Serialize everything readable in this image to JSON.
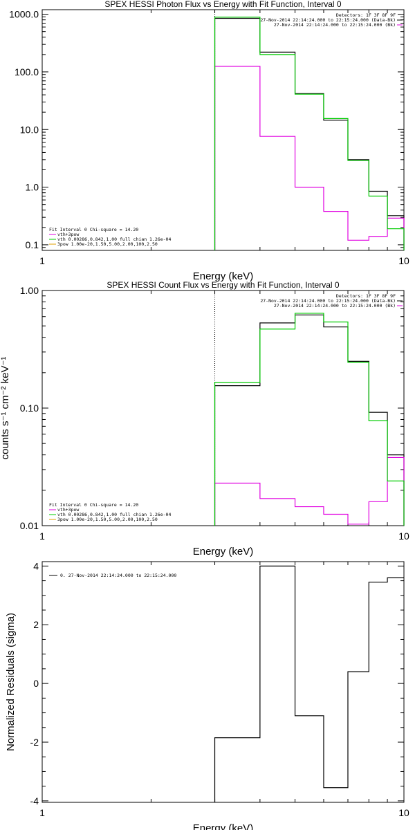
{
  "colors": {
    "black": "#000000",
    "magenta": "#e000e0",
    "green": "#00cc00",
    "orange": "#e0a000",
    "frame": "#000000"
  },
  "chart_data": [
    {
      "id": "photon",
      "type": "line",
      "title": "SPEX HESSI Photon Flux vs Energy with Fit Function, Interval 0",
      "xlabel": "Energy (keV)",
      "ylabel": "",
      "xscale": "log",
      "yscale": "log",
      "xlim": [
        1,
        10
      ],
      "ylim": [
        0.08,
        1200
      ],
      "xticks": [
        {
          "v": 1,
          "label": "1"
        },
        {
          "v": 10,
          "label": "10"
        }
      ],
      "yticks": [
        {
          "v": 0.1,
          "label": "0.1"
        },
        {
          "v": 1,
          "label": "1.0"
        },
        {
          "v": 10,
          "label": "10.0"
        },
        {
          "v": 100,
          "label": "100.0"
        },
        {
          "v": 1000,
          "label": "1000.0"
        }
      ],
      "edges": [
        3,
        4,
        5,
        6,
        7,
        8,
        9,
        10
      ],
      "vline": 3,
      "info_lines": [
        "Detectors: 1F 3F 8F 9F",
        "27-Nov-2014 22:14:24.000 to 22:15:24.000 (Data-Bk)",
        "27-Nov-2014 22:14:24.000 to 22:15:24.000 (Bk)"
      ],
      "info_colors": [
        "",
        "black",
        "magenta"
      ],
      "fit_lines": [
        "Fit Interval 0   Chi-square = 14.20",
        "vth+3pow",
        "vth 0.00286,0.842,1.00  full chian 1.26e-04",
        "3pow 1.00e-20,1.50,5.00,2.00,100,2.50"
      ],
      "fit_colors": [
        "",
        "magenta",
        "green",
        "orange"
      ],
      "series": [
        {
          "name": "Data-Bk",
          "color": "black",
          "values": [
            850,
            220,
            42,
            14.5,
            3.0,
            0.85,
            0.32
          ]
        },
        {
          "name": "Bk",
          "color": "magenta",
          "values": [
            125,
            7.6,
            1.0,
            0.38,
            0.12,
            0.14,
            0.29
          ]
        },
        {
          "name": "vth+3pow",
          "color": "green",
          "values": [
            890,
            200,
            41,
            15.5,
            2.9,
            0.7,
            0.19
          ]
        }
      ]
    },
    {
      "id": "count",
      "type": "line",
      "title": "SPEX HESSI Count Flux vs Energy with Fit Function, Interval 0",
      "xlabel": "Energy (keV)",
      "ylabel": "counts s⁻¹ cm⁻² keV⁻¹",
      "xscale": "log",
      "yscale": "log",
      "xlim": [
        1,
        10
      ],
      "ylim": [
        0.01,
        1
      ],
      "xticks": [
        {
          "v": 1,
          "label": "1"
        },
        {
          "v": 10,
          "label": "10"
        }
      ],
      "yticks": [
        {
          "v": 0.01,
          "label": "0.01"
        },
        {
          "v": 0.1,
          "label": "0.10"
        },
        {
          "v": 1,
          "label": "1.00"
        }
      ],
      "edges": [
        3,
        4,
        5,
        6,
        7,
        8,
        9,
        10
      ],
      "vline": 3,
      "info_lines": [
        "Detectors: 1F 3F 8F 9F",
        "27-Nov-2014 22:14:24.000 to 22:15:24.000 (Data-Bk)",
        "27-Nov-2014 22:14:24.000 to 22:15:24.000 (Bk)"
      ],
      "info_colors": [
        "",
        "black",
        "magenta"
      ],
      "fit_lines": [
        "Fit Interval 0   Chi-square = 14.20",
        "vth+3pow",
        "vth 0.00286,0.842,1.00  full chian 1.26e-04",
        "3pow 1.00e-20,1.50,5.00,2.00,100,2.50"
      ],
      "fit_colors": [
        "",
        "magenta",
        "green",
        "orange"
      ],
      "series": [
        {
          "name": "Data-Bk",
          "color": "black",
          "values": [
            0.155,
            0.53,
            0.62,
            0.49,
            0.25,
            0.092,
            0.04
          ]
        },
        {
          "name": "Bk",
          "color": "magenta",
          "values": [
            0.023,
            0.017,
            0.0145,
            0.0125,
            0.0103,
            0.016,
            0.038
          ]
        },
        {
          "name": "vth+3pow",
          "color": "green",
          "values": [
            0.165,
            0.47,
            0.64,
            0.54,
            0.245,
            0.078,
            0.024
          ]
        }
      ]
    },
    {
      "id": "residuals",
      "type": "line",
      "title": "",
      "xlabel": "Energy (keV)",
      "ylabel": "Normalized Residuals (sigma)",
      "xscale": "log",
      "yscale": "linear",
      "xlim": [
        1,
        10
      ],
      "ylim": [
        -4.05,
        4.15
      ],
      "xticks": [
        {
          "v": 1,
          "label": "1"
        },
        {
          "v": 10,
          "label": "10"
        }
      ],
      "yticks": [
        {
          "v": -4,
          "label": "-4"
        },
        {
          "v": -2,
          "label": "-2"
        },
        {
          "v": 0,
          "label": "0"
        },
        {
          "v": 2,
          "label": "2"
        },
        {
          "v": 4,
          "label": "4"
        }
      ],
      "edges": [
        3,
        4,
        5,
        6,
        7,
        8,
        9,
        10
      ],
      "vline": null,
      "info_lines": [],
      "info_colors": [],
      "fit_lines": [],
      "fit_colors": [],
      "legend_text": "0. 27-Nov-2014 22:14:24.000 to 22:15:24.000",
      "series": [
        {
          "name": "residuals",
          "color": "black",
          "values": [
            -1.85,
            4.0,
            -1.1,
            -3.55,
            0.4,
            3.45,
            3.6
          ]
        }
      ]
    }
  ]
}
